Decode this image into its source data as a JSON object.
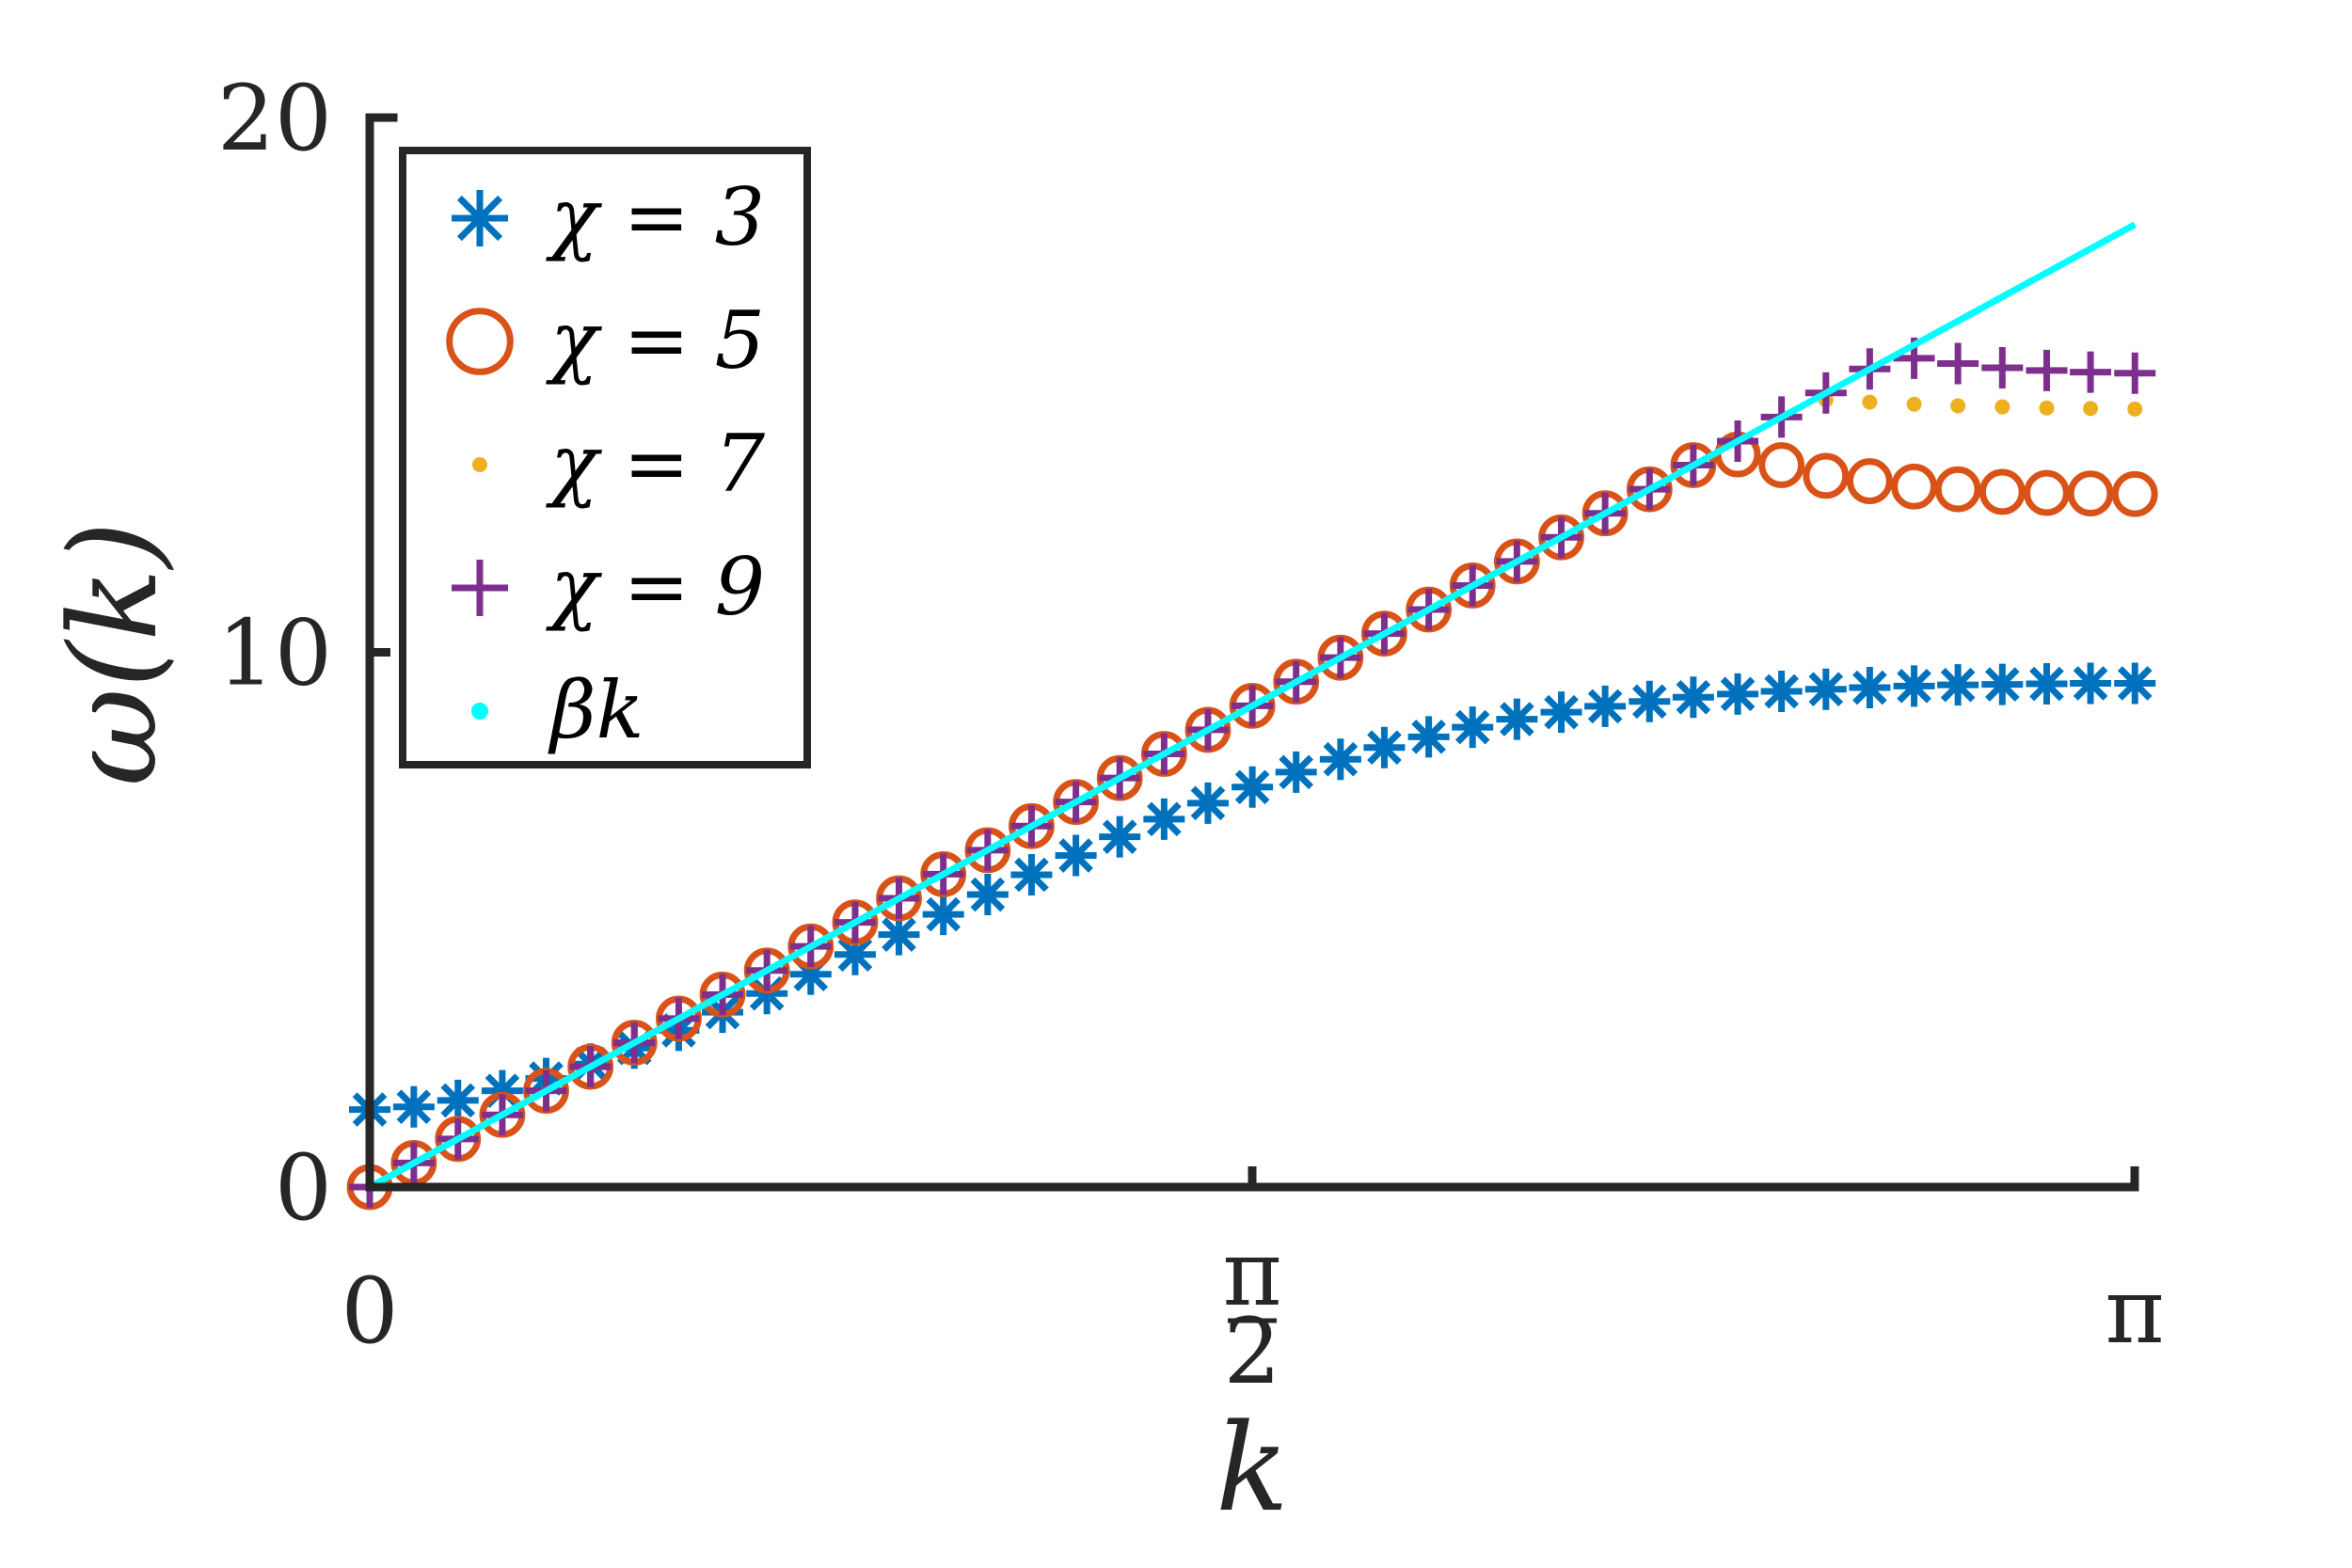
{
  "chart_data": {
    "type": "scatter",
    "xlabel": "k",
    "ylabel": "ω(k)",
    "xlim": [
      0,
      3.14159
    ],
    "ylim": [
      0,
      20
    ],
    "xticks": [
      {
        "value": 0,
        "label": "0"
      },
      {
        "value": 1.5708,
        "label_num": "π",
        "label_den": "2"
      },
      {
        "value": 3.14159,
        "label": "π"
      }
    ],
    "yticks": [
      {
        "value": 0,
        "label": "0"
      },
      {
        "value": 10,
        "label": "10"
      },
      {
        "value": 20,
        "label": "20"
      }
    ],
    "grid": false,
    "legend_position": "top-left",
    "slope_beta": 5.73,
    "series": [
      {
        "name": "χ = 3",
        "marker": "asterisk",
        "color": "#0072BD",
        "points": [
          [
            0.0,
            1.45
          ],
          [
            0.0785,
            1.5
          ],
          [
            0.157,
            1.62
          ],
          [
            0.236,
            1.8
          ],
          [
            0.314,
            2.03
          ],
          [
            0.393,
            2.3
          ],
          [
            0.471,
            2.6
          ],
          [
            0.55,
            2.93
          ],
          [
            0.628,
            3.27
          ],
          [
            0.707,
            3.62
          ],
          [
            0.785,
            3.98
          ],
          [
            0.864,
            4.35
          ],
          [
            0.942,
            4.72
          ],
          [
            1.021,
            5.1
          ],
          [
            1.1,
            5.47
          ],
          [
            1.178,
            5.84
          ],
          [
            1.257,
            6.2
          ],
          [
            1.335,
            6.55
          ],
          [
            1.414,
            6.88
          ],
          [
            1.492,
            7.18
          ],
          [
            1.571,
            7.48
          ],
          [
            1.649,
            7.76
          ],
          [
            1.728,
            8.0
          ],
          [
            1.806,
            8.22
          ],
          [
            1.885,
            8.42
          ],
          [
            1.963,
            8.6
          ],
          [
            2.042,
            8.75
          ],
          [
            2.121,
            8.88
          ],
          [
            2.199,
            8.99
          ],
          [
            2.278,
            9.08
          ],
          [
            2.356,
            9.16
          ],
          [
            2.435,
            9.22
          ],
          [
            2.513,
            9.27
          ],
          [
            2.592,
            9.31
          ],
          [
            2.67,
            9.34
          ],
          [
            2.749,
            9.37
          ],
          [
            2.827,
            9.39
          ],
          [
            2.906,
            9.4
          ],
          [
            2.985,
            9.41
          ],
          [
            3.063,
            9.42
          ],
          [
            3.142,
            9.42
          ]
        ]
      },
      {
        "name": "χ = 5",
        "marker": "circle",
        "color": "#D95319",
        "points": [
          [
            0.0,
            0.0
          ],
          [
            0.0785,
            0.45
          ],
          [
            0.157,
            0.9
          ],
          [
            0.236,
            1.35
          ],
          [
            0.314,
            1.8
          ],
          [
            0.393,
            2.25
          ],
          [
            0.471,
            2.7
          ],
          [
            0.55,
            3.15
          ],
          [
            0.628,
            3.6
          ],
          [
            0.707,
            4.05
          ],
          [
            0.785,
            4.5
          ],
          [
            0.864,
            4.95
          ],
          [
            0.942,
            5.4
          ],
          [
            1.021,
            5.85
          ],
          [
            1.1,
            6.3
          ],
          [
            1.178,
            6.75
          ],
          [
            1.257,
            7.2
          ],
          [
            1.335,
            7.65
          ],
          [
            1.414,
            8.1
          ],
          [
            1.492,
            8.55
          ],
          [
            1.571,
            9.0
          ],
          [
            1.649,
            9.45
          ],
          [
            1.728,
            9.9
          ],
          [
            1.806,
            10.35
          ],
          [
            1.885,
            10.8
          ],
          [
            1.963,
            11.25
          ],
          [
            2.042,
            11.7
          ],
          [
            2.121,
            12.15
          ],
          [
            2.199,
            12.6
          ],
          [
            2.278,
            13.05
          ],
          [
            2.356,
            13.5
          ],
          [
            2.435,
            13.7
          ],
          [
            2.513,
            13.5
          ],
          [
            2.592,
            13.3
          ],
          [
            2.67,
            13.2
          ],
          [
            2.749,
            13.1
          ],
          [
            2.827,
            13.05
          ],
          [
            2.906,
            13.0
          ],
          [
            2.985,
            12.98
          ],
          [
            3.063,
            12.97
          ],
          [
            3.142,
            12.96
          ]
        ]
      },
      {
        "name": "χ = 7",
        "marker": "dot",
        "color": "#EDB120",
        "points": [
          [
            2.592,
            14.72
          ],
          [
            2.67,
            14.68
          ],
          [
            2.749,
            14.64
          ],
          [
            2.827,
            14.61
          ],
          [
            2.906,
            14.59
          ],
          [
            2.985,
            14.57
          ],
          [
            3.063,
            14.56
          ],
          [
            3.142,
            14.55
          ]
        ]
      },
      {
        "name": "χ = 9",
        "marker": "plus",
        "color": "#7E2F8E",
        "points": [
          [
            0.0,
            0.0
          ],
          [
            0.0785,
            0.45
          ],
          [
            0.157,
            0.9
          ],
          [
            0.236,
            1.35
          ],
          [
            0.314,
            1.8
          ],
          [
            0.393,
            2.25
          ],
          [
            0.471,
            2.7
          ],
          [
            0.55,
            3.15
          ],
          [
            0.628,
            3.6
          ],
          [
            0.707,
            4.05
          ],
          [
            0.785,
            4.5
          ],
          [
            0.864,
            4.95
          ],
          [
            0.942,
            5.4
          ],
          [
            1.021,
            5.85
          ],
          [
            1.1,
            6.3
          ],
          [
            1.178,
            6.75
          ],
          [
            1.257,
            7.2
          ],
          [
            1.335,
            7.65
          ],
          [
            1.414,
            8.1
          ],
          [
            1.492,
            8.55
          ],
          [
            1.571,
            9.0
          ],
          [
            1.649,
            9.45
          ],
          [
            1.728,
            9.9
          ],
          [
            1.806,
            10.35
          ],
          [
            1.885,
            10.8
          ],
          [
            1.963,
            11.25
          ],
          [
            2.042,
            11.7
          ],
          [
            2.121,
            12.15
          ],
          [
            2.199,
            12.6
          ],
          [
            2.278,
            13.05
          ],
          [
            2.356,
            13.5
          ],
          [
            2.435,
            13.95
          ],
          [
            2.513,
            14.4
          ],
          [
            2.592,
            14.85
          ],
          [
            2.67,
            15.3
          ],
          [
            2.749,
            15.5
          ],
          [
            2.827,
            15.4
          ],
          [
            2.906,
            15.32
          ],
          [
            2.985,
            15.27
          ],
          [
            3.063,
            15.24
          ],
          [
            3.142,
            15.22
          ]
        ]
      },
      {
        "name": "βk",
        "marker": "line",
        "color": "#00FFFF",
        "points": [
          [
            0,
            0
          ],
          [
            3.142,
            18.0
          ]
        ]
      }
    ]
  }
}
